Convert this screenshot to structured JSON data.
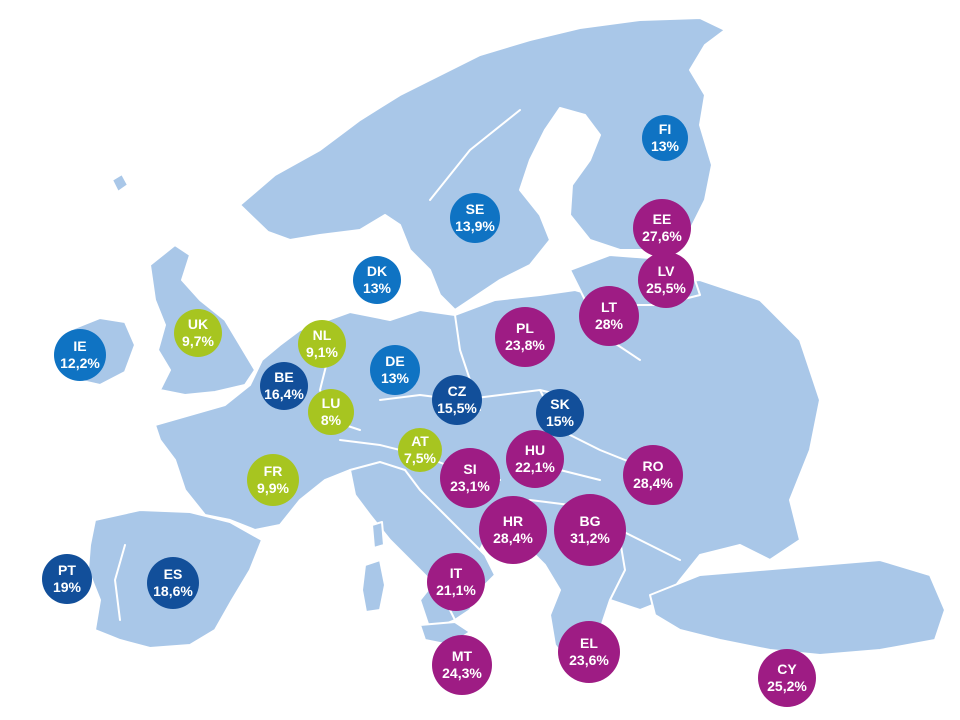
{
  "legend_colors": {
    "low": "#a7c520",
    "mid_low": "#0f73c3",
    "mid": "#124f9a",
    "high": "#9e1c84"
  },
  "countries": [
    {
      "code": "FI",
      "value": "13%",
      "group": "mid_low"
    },
    {
      "code": "SE",
      "value": "13,9%",
      "group": "mid_low"
    },
    {
      "code": "EE",
      "value": "27,6%",
      "group": "high"
    },
    {
      "code": "LV",
      "value": "25,5%",
      "group": "high"
    },
    {
      "code": "DK",
      "value": "13%",
      "group": "mid_low"
    },
    {
      "code": "LT",
      "value": "28%",
      "group": "high"
    },
    {
      "code": "UK",
      "value": "9,7%",
      "group": "low"
    },
    {
      "code": "NL",
      "value": "9,1%",
      "group": "low"
    },
    {
      "code": "PL",
      "value": "23,8%",
      "group": "high"
    },
    {
      "code": "IE",
      "value": "12,2%",
      "group": "mid_low"
    },
    {
      "code": "DE",
      "value": "13%",
      "group": "mid_low"
    },
    {
      "code": "BE",
      "value": "16,4%",
      "group": "mid"
    },
    {
      "code": "CZ",
      "value": "15,5%",
      "group": "mid"
    },
    {
      "code": "SK",
      "value": "15%",
      "group": "mid"
    },
    {
      "code": "LU",
      "value": "8%",
      "group": "low"
    },
    {
      "code": "AT",
      "value": "7,5%",
      "group": "low"
    },
    {
      "code": "HU",
      "value": "22,1%",
      "group": "high"
    },
    {
      "code": "RO",
      "value": "28,4%",
      "group": "high"
    },
    {
      "code": "SI",
      "value": "23,1%",
      "group": "high"
    },
    {
      "code": "FR",
      "value": "9,9%",
      "group": "low"
    },
    {
      "code": "HR",
      "value": "28,4%",
      "group": "high"
    },
    {
      "code": "BG",
      "value": "31,2%",
      "group": "high"
    },
    {
      "code": "PT",
      "value": "19%",
      "group": "mid"
    },
    {
      "code": "ES",
      "value": "18,6%",
      "group": "mid"
    },
    {
      "code": "IT",
      "value": "21,1%",
      "group": "high"
    },
    {
      "code": "MT",
      "value": "24,3%",
      "group": "high"
    },
    {
      "code": "EL",
      "value": "23,6%",
      "group": "high"
    },
    {
      "code": "CY",
      "value": "25,2%",
      "group": "high"
    }
  ]
}
